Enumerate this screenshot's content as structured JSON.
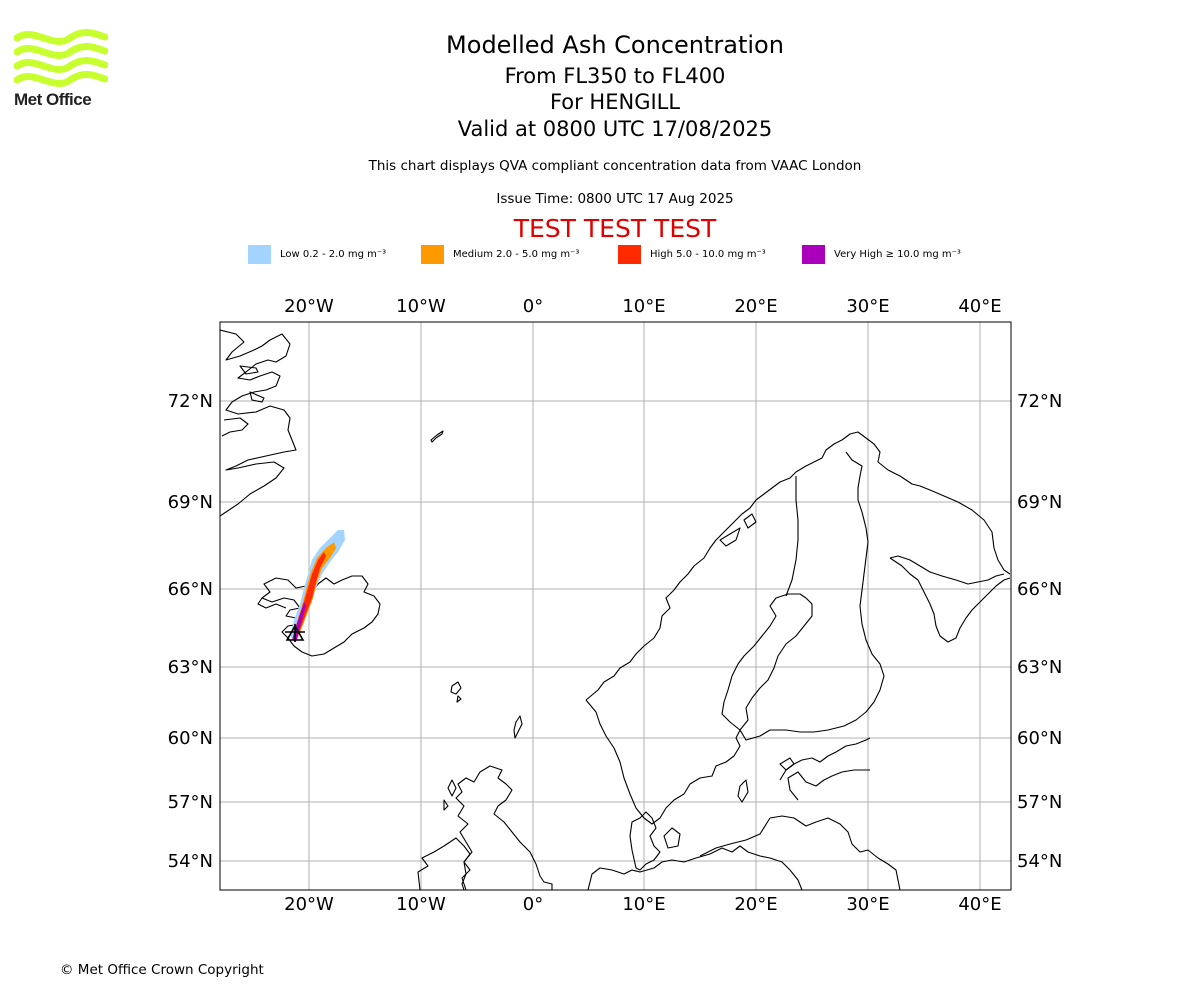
{
  "brand": {
    "name": "Met Office",
    "logo_color": "#c8ff2e"
  },
  "header": {
    "title": "Modelled Ash Concentration",
    "levels": "From FL350 to FL400",
    "location": "For HENGILL",
    "valid": "Valid at 0800 UTC 17/08/2025",
    "note": "This chart displays QVA compliant concentration data from VAAC London",
    "issue_time": "Issue Time: 0800 UTC 17 Aug 2025",
    "test_banner": "TEST TEST TEST"
  },
  "legend": [
    {
      "label": "Low 0.2 - 2.0 mg m⁻³",
      "color": "#a2d4ff"
    },
    {
      "label": "Medium 2.0 - 5.0 mg m⁻³",
      "color": "#ff9900"
    },
    {
      "label": "High 5.0 - 10.0 mg m⁻³",
      "color": "#ff2a00"
    },
    {
      "label": "Very High  ≥  10.0 mg m⁻³",
      "color": "#aa00bb"
    }
  ],
  "map": {
    "projection": "Mercator",
    "lon_ticks": [
      "20°W",
      "10°W",
      "0°",
      "10°E",
      "20°E",
      "30°E",
      "40°E"
    ],
    "lat_ticks": [
      "72°N",
      "69°N",
      "66°N",
      "63°N",
      "60°N",
      "57°N",
      "54°N"
    ],
    "volcano_marker": "HENGILL"
  },
  "footer": {
    "copyright": "© Met Office Crown Copyright"
  }
}
